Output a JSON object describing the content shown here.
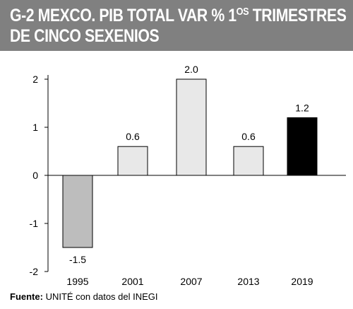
{
  "header": {
    "title_line1_a": "G-2 MEXCO. PIB TOTAL VAR % 1",
    "title_line1_sup": "OS",
    "title_line1_b": " TRIMESTRES",
    "title_line2": "DE CINCO SEXENIOS"
  },
  "footer": {
    "source_label": "Fuente:",
    "source_text": " UNITÉ con datos del INEGI"
  },
  "colors": {
    "bar_default": "#e8e8e8",
    "bar_negative": "#bdbdbd",
    "bar_highlight": "#000000",
    "header_bg": "#808080"
  },
  "chart_data": {
    "type": "bar",
    "categories": [
      "1995",
      "2001",
      "2007",
      "2013",
      "2019"
    ],
    "values": [
      -1.5,
      0.6,
      2.0,
      0.6,
      1.2
    ],
    "value_labels": [
      "-1.5",
      "0.6",
      "2.0",
      "0.6",
      "1.2"
    ],
    "bar_colors": [
      "#bdbdbd",
      "#e8e8e8",
      "#e8e8e8",
      "#e8e8e8",
      "#000000"
    ],
    "title": "",
    "xlabel": "",
    "ylabel": "",
    "ylim": [
      -2,
      2
    ],
    "yticks": [
      -2,
      -1,
      0,
      1,
      2
    ],
    "ytick_labels": [
      "-2",
      "-1",
      "0",
      "1",
      "2"
    ],
    "grid": false,
    "legend": "none"
  }
}
